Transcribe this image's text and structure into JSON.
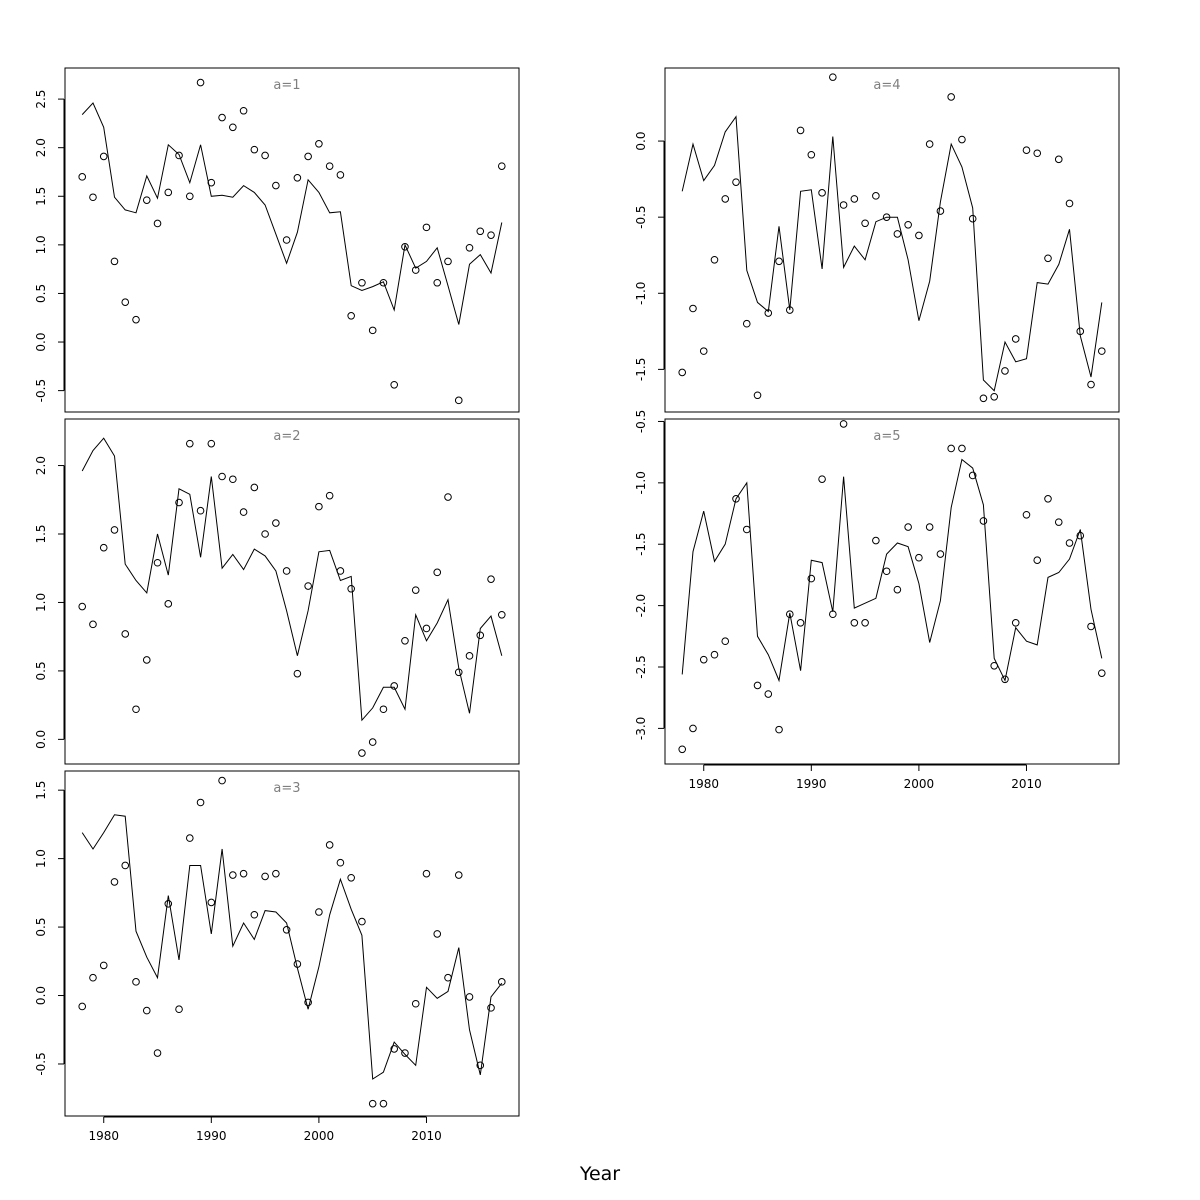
{
  "chart_data": [
    {
      "type": "scatter",
      "title": "a=1",
      "ylim": [
        -0.72,
        2.82
      ],
      "yticks": [
        -0.5,
        0.0,
        0.5,
        1.0,
        1.5,
        2.0,
        2.5
      ],
      "ytick_labels": [
        "-0.5",
        "0.0",
        "0.5",
        "1.0",
        "1.5",
        "2.0",
        "2.5"
      ],
      "x": [
        1978,
        1979,
        1980,
        1981,
        1982,
        1983,
        1984,
        1985,
        1986,
        1987,
        1988,
        1989,
        1990,
        1991,
        1992,
        1993,
        1994,
        1995,
        1996,
        1997,
        1998,
        1999,
        2000,
        2001,
        2002,
        2003,
        2004,
        2005,
        2006,
        2007,
        2008,
        2009,
        2010,
        2011,
        2012,
        2013,
        2014,
        2015,
        2016,
        2017
      ],
      "series": [
        {
          "role": "observed",
          "style": "points",
          "values": [
            1.7,
            1.49,
            1.91,
            0.83,
            0.41,
            0.23,
            1.46,
            1.22,
            1.54,
            1.92,
            1.5,
            2.67,
            1.64,
            2.31,
            2.21,
            2.38,
            1.98,
            1.92,
            1.61,
            1.05,
            1.69,
            1.91,
            2.04,
            1.81,
            1.72,
            0.27,
            0.61,
            0.12,
            0.61,
            -0.44,
            0.98,
            0.74,
            1.18,
            0.61,
            0.83,
            -0.6,
            0.97,
            1.14,
            1.1,
            1.81
          ]
        },
        {
          "role": "fitted",
          "style": "line",
          "values": [
            2.34,
            2.46,
            2.21,
            1.49,
            1.36,
            1.33,
            1.71,
            1.48,
            2.03,
            1.93,
            1.64,
            2.03,
            1.5,
            1.51,
            1.49,
            1.61,
            1.54,
            1.41,
            1.11,
            0.81,
            1.13,
            1.67,
            1.54,
            1.33,
            1.34,
            0.58,
            0.53,
            0.57,
            0.62,
            0.33,
            1.0,
            0.76,
            0.83,
            0.97,
            0.58,
            0.18,
            0.8,
            0.9,
            0.71,
            1.23
          ]
        }
      ]
    },
    {
      "type": "scatter",
      "title": "a=2",
      "ylim": [
        -0.18,
        2.34
      ],
      "yticks": [
        0.0,
        0.5,
        1.0,
        1.5,
        2.0
      ],
      "ytick_labels": [
        "0.0",
        "0.5",
        "1.0",
        "1.5",
        "2.0"
      ],
      "x": [
        1978,
        1979,
        1980,
        1981,
        1982,
        1983,
        1984,
        1985,
        1986,
        1987,
        1988,
        1989,
        1990,
        1991,
        1992,
        1993,
        1994,
        1995,
        1996,
        1997,
        1998,
        1999,
        2000,
        2001,
        2002,
        2003,
        2004,
        2005,
        2006,
        2007,
        2008,
        2009,
        2010,
        2011,
        2012,
        2013,
        2014,
        2015,
        2016,
        2017
      ],
      "series": [
        {
          "role": "observed",
          "style": "points",
          "values": [
            0.97,
            0.84,
            1.4,
            1.53,
            0.77,
            0.22,
            0.58,
            1.29,
            0.99,
            1.73,
            2.16,
            1.67,
            2.16,
            1.92,
            1.9,
            1.66,
            1.84,
            1.5,
            1.58,
            1.23,
            0.48,
            1.12,
            1.7,
            1.78,
            1.23,
            1.1,
            -0.1,
            -0.02,
            0.22,
            0.39,
            0.72,
            1.09,
            0.81,
            1.22,
            1.77,
            0.49,
            0.61,
            0.76,
            1.17,
            0.91
          ]
        },
        {
          "role": "fitted",
          "style": "line",
          "values": [
            1.96,
            2.11,
            2.2,
            2.07,
            1.28,
            1.16,
            1.07,
            1.5,
            1.2,
            1.83,
            1.79,
            1.33,
            1.92,
            1.25,
            1.35,
            1.24,
            1.39,
            1.34,
            1.23,
            0.94,
            0.61,
            0.94,
            1.37,
            1.38,
            1.16,
            1.19,
            0.14,
            0.23,
            0.38,
            0.38,
            0.22,
            0.91,
            0.72,
            0.85,
            1.02,
            0.52,
            0.19,
            0.81,
            0.9,
            0.61
          ]
        }
      ]
    },
    {
      "type": "scatter",
      "title": "a=3",
      "ylim": [
        -0.88,
        1.64
      ],
      "yticks": [
        -0.5,
        0.0,
        0.5,
        1.0,
        1.5
      ],
      "ytick_labels": [
        "-0.5",
        "0.0",
        "0.5",
        "1.0",
        "1.5"
      ],
      "x": [
        1978,
        1979,
        1980,
        1981,
        1982,
        1983,
        1984,
        1985,
        1986,
        1987,
        1988,
        1989,
        1990,
        1991,
        1992,
        1993,
        1994,
        1995,
        1996,
        1997,
        1998,
        1999,
        2000,
        2001,
        2002,
        2003,
        2004,
        2005,
        2006,
        2007,
        2008,
        2009,
        2010,
        2011,
        2012,
        2013,
        2014,
        2015,
        2016,
        2017
      ],
      "series": [
        {
          "role": "observed",
          "style": "points",
          "values": [
            -0.08,
            0.13,
            0.22,
            0.83,
            0.95,
            0.1,
            -0.11,
            -0.42,
            0.67,
            -0.1,
            1.15,
            1.41,
            0.68,
            1.57,
            0.88,
            0.89,
            0.59,
            0.87,
            0.89,
            0.48,
            0.23,
            -0.05,
            0.61,
            1.1,
            0.97,
            0.86,
            0.54,
            -0.79,
            -0.79,
            -0.39,
            -0.42,
            -0.06,
            0.89,
            0.45,
            0.13,
            0.88,
            -0.01,
            -0.51,
            -0.09,
            0.1
          ]
        },
        {
          "role": "fitted",
          "style": "line",
          "values": [
            1.19,
            1.07,
            1.19,
            1.32,
            1.31,
            0.47,
            0.28,
            0.13,
            0.73,
            0.26,
            0.95,
            0.95,
            0.45,
            1.07,
            0.36,
            0.53,
            0.41,
            0.62,
            0.61,
            0.53,
            0.2,
            -0.1,
            0.21,
            0.59,
            0.85,
            0.63,
            0.44,
            -0.61,
            -0.56,
            -0.34,
            -0.43,
            -0.51,
            0.06,
            -0.02,
            0.03,
            0.35,
            -0.25,
            -0.58,
            -0.01,
            0.09
          ]
        }
      ]
    },
    {
      "type": "scatter",
      "title": "a=4",
      "ylim": [
        -1.78,
        0.48
      ],
      "yticks": [
        -1.5,
        -1.0,
        -0.5,
        0.0
      ],
      "ytick_labels": [
        "-1.5",
        "-1.0",
        "-0.5",
        "0.0"
      ],
      "x": [
        1978,
        1979,
        1980,
        1981,
        1982,
        1983,
        1984,
        1985,
        1986,
        1987,
        1988,
        1989,
        1990,
        1991,
        1992,
        1993,
        1994,
        1995,
        1996,
        1997,
        1998,
        1999,
        2000,
        2001,
        2002,
        2003,
        2004,
        2005,
        2006,
        2007,
        2008,
        2009,
        2010,
        2011,
        2012,
        2013,
        2014,
        2015,
        2016,
        2017
      ],
      "series": [
        {
          "role": "observed",
          "style": "points",
          "values": [
            -1.52,
            -1.1,
            -1.38,
            -0.78,
            -0.38,
            -0.27,
            -1.2,
            -1.67,
            -1.13,
            -0.79,
            -1.11,
            0.07,
            -0.09,
            -0.34,
            0.42,
            -0.42,
            -0.38,
            -0.54,
            -0.36,
            -0.5,
            -0.61,
            -0.55,
            -0.62,
            -0.02,
            -0.46,
            0.29,
            0.01,
            -0.51,
            -1.69,
            -1.68,
            -1.51,
            -1.3,
            -0.06,
            -0.08,
            -0.77,
            -0.12,
            -0.41,
            -1.25,
            -1.6,
            -1.38
          ]
        },
        {
          "role": "fitted",
          "style": "line",
          "values": [
            -0.33,
            -0.02,
            -0.26,
            -0.16,
            0.06,
            0.16,
            -0.85,
            -1.06,
            -1.12,
            -0.56,
            -1.11,
            -0.33,
            -0.32,
            -0.84,
            0.03,
            -0.83,
            -0.69,
            -0.78,
            -0.53,
            -0.5,
            -0.5,
            -0.78,
            -1.18,
            -0.92,
            -0.4,
            -0.02,
            -0.17,
            -0.44,
            -1.57,
            -1.64,
            -1.32,
            -1.45,
            -1.43,
            -0.93,
            -0.94,
            -0.81,
            -0.58,
            -1.28,
            -1.55,
            -1.06
          ]
        }
      ]
    },
    {
      "type": "scatter",
      "title": "a=5",
      "ylim": [
        -3.29,
        -0.48
      ],
      "yticks": [
        -3.0,
        -2.5,
        -2.0,
        -1.5,
        -1.0,
        -0.5
      ],
      "ytick_labels": [
        "-3.0",
        "-2.5",
        "-2.0",
        "-1.5",
        "-1.0",
        "-0.5"
      ],
      "xlim": [
        1976.4,
        2018.6
      ],
      "xticks": [
        1980,
        1990,
        2000,
        2010
      ],
      "xtick_labels": [
        "1980",
        "1990",
        "2000",
        "2010"
      ],
      "x": [
        1978,
        1979,
        1980,
        1981,
        1982,
        1983,
        1984,
        1985,
        1986,
        1987,
        1988,
        1989,
        1990,
        1991,
        1992,
        1993,
        1994,
        1995,
        1996,
        1997,
        1998,
        1999,
        2000,
        2001,
        2002,
        2003,
        2004,
        2005,
        2006,
        2007,
        2008,
        2009,
        2010,
        2011,
        2012,
        2013,
        2014,
        2015,
        2016,
        2017
      ],
      "series": [
        {
          "role": "observed",
          "style": "points",
          "values": [
            -3.17,
            -3.0,
            -2.44,
            -2.4,
            -2.29,
            -1.13,
            -1.38,
            -2.65,
            -2.72,
            -3.01,
            -2.07,
            -2.14,
            -1.78,
            -0.97,
            -2.07,
            -0.52,
            -2.14,
            -2.14,
            -1.47,
            -1.72,
            -1.87,
            -1.36,
            -1.61,
            -1.36,
            -1.58,
            -0.72,
            -0.72,
            -0.94,
            -1.31,
            -2.49,
            -2.6,
            -2.14,
            -1.26,
            -1.63,
            -1.13,
            -1.32,
            -1.49,
            -1.43,
            -2.17,
            -2.55
          ]
        },
        {
          "role": "fitted",
          "style": "line",
          "values": [
            -2.56,
            -1.56,
            -1.23,
            -1.64,
            -1.5,
            -1.13,
            -1.0,
            -2.25,
            -2.4,
            -2.61,
            -2.06,
            -2.53,
            -1.63,
            -1.65,
            -2.05,
            -0.95,
            -2.02,
            -1.98,
            -1.94,
            -1.58,
            -1.49,
            -1.52,
            -1.82,
            -2.3,
            -1.96,
            -1.2,
            -0.81,
            -0.88,
            -1.18,
            -2.43,
            -2.61,
            -2.18,
            -2.29,
            -2.32,
            -1.77,
            -1.73,
            -1.62,
            -1.38,
            -2.03,
            -2.43
          ]
        }
      ]
    }
  ],
  "shared_x": {
    "label": "Year",
    "xlim": [
      1976.4,
      2018.6
    ],
    "xticks": [
      1980,
      1990,
      2000,
      2010
    ],
    "xtick_labels": [
      "1980",
      "1990",
      "2000",
      "2010"
    ]
  }
}
